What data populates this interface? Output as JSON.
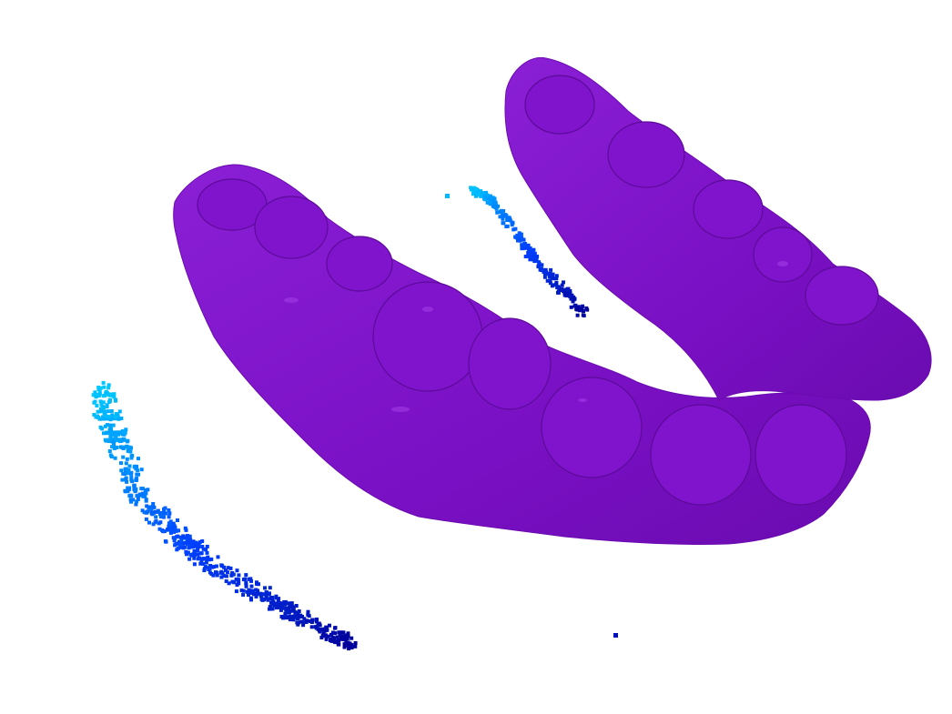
{
  "scene": {
    "background_color": "#ffffff",
    "mesh": {
      "name": "dental-arch-mesh",
      "color": "#7a10c4",
      "shade_color": "#5d0a99",
      "highlight_color": "#a640e8"
    },
    "point_clouds": [
      {
        "name": "point-cloud-large",
        "gradient": [
          "#00c8ff",
          "#0040ff",
          "#000099"
        ]
      },
      {
        "name": "point-cloud-small",
        "gradient": [
          "#00c8ff",
          "#0040ff",
          "#000099"
        ]
      }
    ]
  }
}
